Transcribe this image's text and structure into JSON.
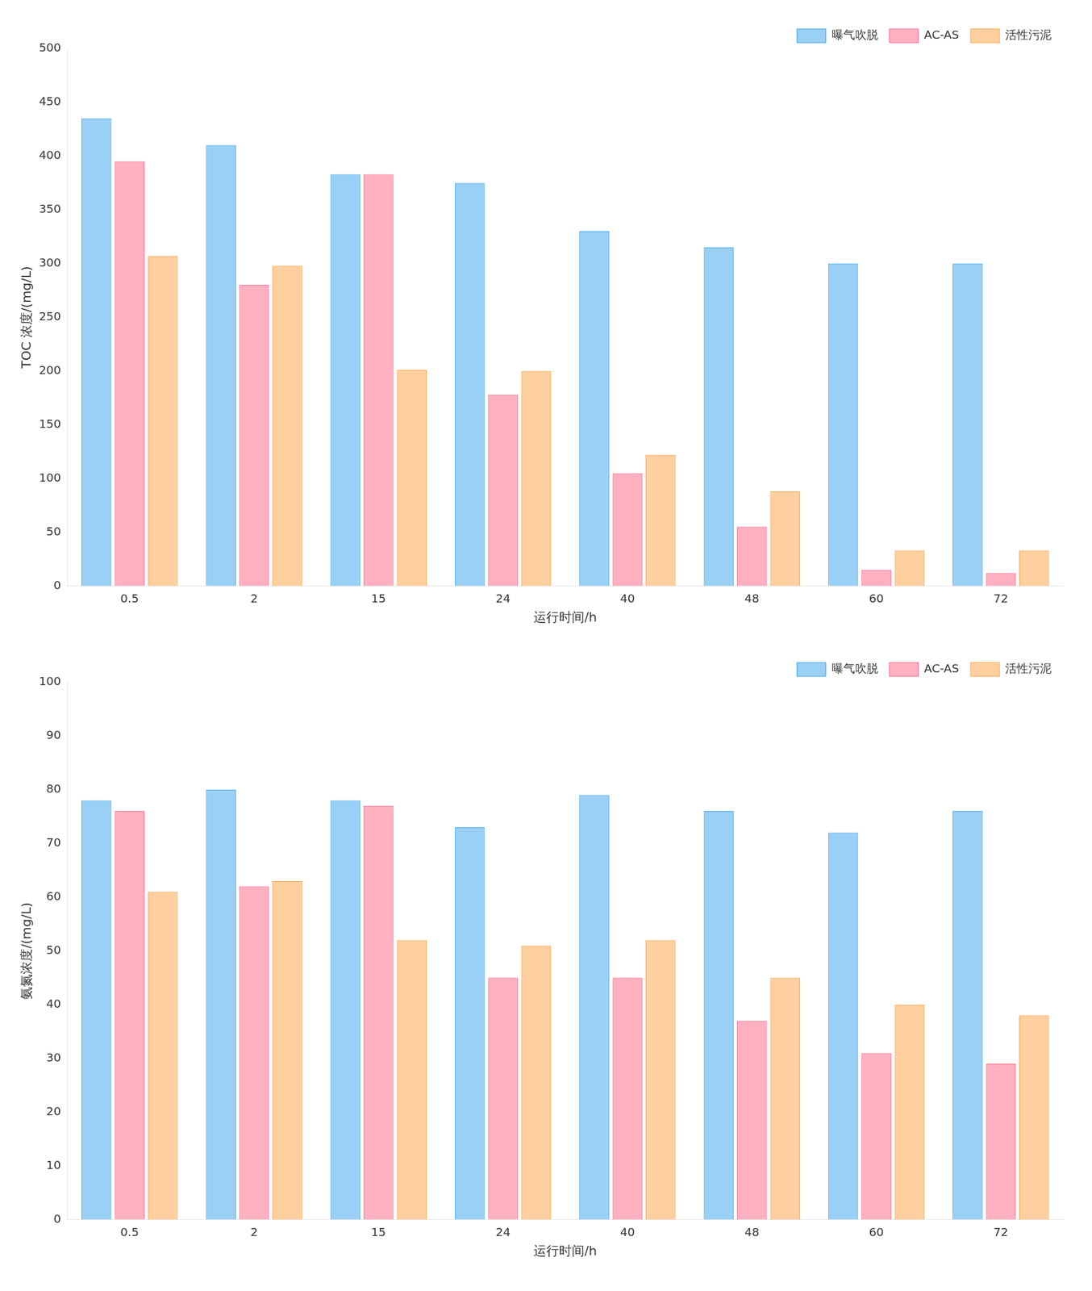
{
  "chart_data": [
    {
      "type": "bar",
      "xlabel": "运行时间/h",
      "ylabel": "TOC 浓度/(mg/L)",
      "categories": [
        "0.5",
        "2",
        "15",
        "24",
        "40",
        "48",
        "60",
        "72"
      ],
      "series": [
        {
          "name": "曝气吹脱",
          "values": [
            435,
            410,
            383,
            375,
            330,
            315,
            300,
            300
          ]
        },
        {
          "name": "AC-AS",
          "values": [
            395,
            280,
            383,
            178,
            105,
            55,
            15,
            12
          ]
        },
        {
          "name": "活性污泥",
          "values": [
            307,
            298,
            201,
            200,
            122,
            88,
            33,
            33
          ]
        }
      ],
      "ylim": [
        0,
        500
      ],
      "yticks": [
        0,
        50,
        100,
        150,
        200,
        250,
        300,
        350,
        400,
        450,
        500
      ],
      "grid": false,
      "legend": "upper right"
    },
    {
      "type": "bar",
      "xlabel": "运行时间/h",
      "ylabel": "氨氮浓度/(mg/L)",
      "categories": [
        "0.5",
        "2",
        "15",
        "24",
        "40",
        "48",
        "60",
        "72"
      ],
      "series": [
        {
          "name": "曝气吹脱",
          "values": [
            78,
            80,
            78,
            73,
            79,
            76,
            72,
            76
          ]
        },
        {
          "name": "AC-AS",
          "values": [
            76,
            62,
            77,
            45,
            45,
            37,
            31,
            29
          ]
        },
        {
          "name": "活性污泥",
          "values": [
            61,
            63,
            52,
            51,
            52,
            45,
            40,
            38
          ]
        }
      ],
      "ylim": [
        0,
        100
      ],
      "yticks": [
        0,
        10,
        20,
        30,
        40,
        50,
        60,
        70,
        80,
        90,
        100
      ],
      "grid": false,
      "legend": "upper right"
    }
  ]
}
